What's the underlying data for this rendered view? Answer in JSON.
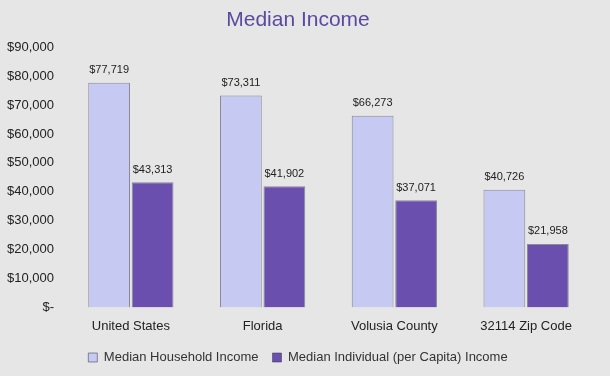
{
  "chart_data": {
    "type": "bar",
    "title": "Median Income",
    "categories": [
      "United States",
      "Florida",
      "Volusia County",
      "32114 Zip Code"
    ],
    "series": [
      {
        "name": "Median Household Income",
        "color": "#c6caf2",
        "values": [
          77719,
          73311,
          66273,
          40726
        ],
        "value_labels": [
          "$77,719",
          "$73,311",
          "$66,273",
          "$40,726"
        ]
      },
      {
        "name": "Median Individual (per Capita) Income",
        "color": "#6b4fae",
        "values": [
          43313,
          41902,
          37071,
          21958
        ],
        "value_labels": [
          "$43,313",
          "$41,902",
          "$37,071",
          "$21,958"
        ]
      }
    ],
    "ylim": [
      0,
      90000
    ],
    "yticks": [
      {
        "value": 0,
        "label": "$-"
      },
      {
        "value": 10000,
        "label": "$10,000"
      },
      {
        "value": 20000,
        "label": "$20,000"
      },
      {
        "value": 30000,
        "label": "$30,000"
      },
      {
        "value": 40000,
        "label": "$40,000"
      },
      {
        "value": 50000,
        "label": "$50,000"
      },
      {
        "value": 60000,
        "label": "$60,000"
      },
      {
        "value": 70000,
        "label": "$70,000"
      },
      {
        "value": 80000,
        "label": "$80,000"
      },
      {
        "value": 90000,
        "label": "$90,000"
      }
    ],
    "grid": false,
    "legend": "bottom",
    "data_labels": true
  }
}
